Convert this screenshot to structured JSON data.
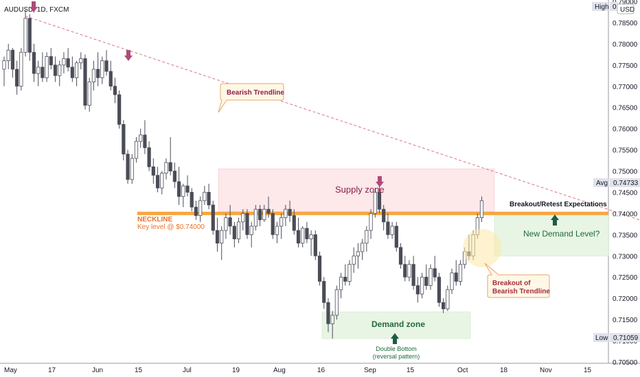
{
  "header": {
    "symbol_title": "AUDUSD, 1D, FXCM"
  },
  "price_scale": {
    "currency": "USD",
    "ticks": [
      "0.78500",
      "0.78000",
      "0.77500",
      "0.77000",
      "0.76500",
      "0.76000",
      "0.75500",
      "0.75000",
      "0.74500",
      "0.74000",
      "0.73500",
      "0.73000",
      "0.72500",
      "0.72000",
      "0.71500",
      "0.71000",
      "0.70500"
    ],
    "top_tick_partial": "0.79000",
    "high_label": "High",
    "high_value_partial": "0",
    "avg_label": "Avg",
    "avg_value": "0.74733",
    "low_label": "Low",
    "low_value": "0.71059"
  },
  "time_scale": {
    "labels": [
      "May",
      "17",
      "Jun",
      "15",
      "Jul",
      "19",
      "Aug",
      "16",
      "Sep",
      "15",
      "Oct",
      "18",
      "Nov",
      "15"
    ]
  },
  "annotations": {
    "bearish_trendline": "Bearish Trendline",
    "supply_zone": "Supply zone",
    "neckline": "NECKLINE",
    "key_level": "Key level @ $0.74000",
    "breakout_retest": "Breakout/Retest Expectations",
    "new_demand": "New Demand Level?",
    "breakout_line1": "Breakout of",
    "breakout_line2": "Bearish Trendline",
    "demand_zone": "Demand zone",
    "double_bottom_line1": "Double Bottom",
    "double_bottom_line2": "(reversal pattern)"
  },
  "colors": {
    "candle_up": "#ffffff",
    "candle_down": "#4a4d57",
    "candle_border": "#4a4d57",
    "neckline": "#f5a742",
    "neckline_text": "#e8732a",
    "trendline": "#d9747c",
    "supply_fill": "#fde8ea",
    "demand_fill": "#e8f5e4",
    "supply_text": "#8b1f4a",
    "demand_text": "#1e6b3a",
    "arrow_down": "#b04a78",
    "arrow_up": "#1e5c45",
    "callout_bg": "#fff8e6",
    "callout_border": "#e8a36a"
  },
  "chart_data": {
    "type": "candlestick",
    "symbol": "AUDUSD",
    "timeframe": "1D",
    "ylim": [
      0.705,
      0.79
    ],
    "horizontal_level": 0.74,
    "supply_zone": [
      0.7405,
      0.7505
    ],
    "demand_zone": [
      0.7105,
      0.7168
    ],
    "new_demand_zone": [
      0.73,
      0.7398
    ],
    "trendline": {
      "start": {
        "index": 5,
        "price": 0.7865
      },
      "end": {
        "index": 206,
        "price": 0.7195
      }
    },
    "candles": [
      [
        0.774,
        0.777,
        0.77,
        0.776
      ],
      [
        0.776,
        0.78,
        0.774,
        0.7785
      ],
      [
        0.7785,
        0.779,
        0.772,
        0.774
      ],
      [
        0.774,
        0.776,
        0.768,
        0.77
      ],
      [
        0.77,
        0.779,
        0.769,
        0.778
      ],
      [
        0.778,
        0.788,
        0.777,
        0.786
      ],
      [
        0.786,
        0.787,
        0.776,
        0.778
      ],
      [
        0.778,
        0.78,
        0.771,
        0.773
      ],
      [
        0.773,
        0.776,
        0.77,
        0.7745
      ],
      [
        0.7745,
        0.778,
        0.771,
        0.772
      ],
      [
        0.772,
        0.778,
        0.771,
        0.777
      ],
      [
        0.777,
        0.779,
        0.774,
        0.775
      ],
      [
        0.775,
        0.777,
        0.771,
        0.7725
      ],
      [
        0.7725,
        0.776,
        0.77,
        0.775
      ],
      [
        0.775,
        0.778,
        0.773,
        0.7765
      ],
      [
        0.7765,
        0.779,
        0.7735,
        0.7745
      ],
      [
        0.7745,
        0.777,
        0.771,
        0.772
      ],
      [
        0.772,
        0.776,
        0.77,
        0.7755
      ],
      [
        0.7755,
        0.778,
        0.774,
        0.7765
      ],
      [
        0.7765,
        0.7775,
        0.7645,
        0.7655
      ],
      [
        0.7655,
        0.772,
        0.764,
        0.771
      ],
      [
        0.771,
        0.776,
        0.769,
        0.774
      ],
      [
        0.774,
        0.778,
        0.77,
        0.772
      ],
      [
        0.772,
        0.777,
        0.7705,
        0.776
      ],
      [
        0.776,
        0.7785,
        0.7725,
        0.7735
      ],
      [
        0.7735,
        0.776,
        0.769,
        0.77
      ],
      [
        0.77,
        0.772,
        0.766,
        0.768
      ],
      [
        0.768,
        0.769,
        0.76,
        0.761
      ],
      [
        0.761,
        0.762,
        0.7525,
        0.754
      ],
      [
        0.754,
        0.755,
        0.747,
        0.748
      ],
      [
        0.748,
        0.754,
        0.747,
        0.753
      ],
      [
        0.753,
        0.758,
        0.752,
        0.757
      ],
      [
        0.757,
        0.76,
        0.7555,
        0.7585
      ],
      [
        0.7585,
        0.762,
        0.754,
        0.7555
      ],
      [
        0.7555,
        0.757,
        0.75,
        0.751
      ],
      [
        0.751,
        0.753,
        0.747,
        0.749
      ],
      [
        0.749,
        0.751,
        0.745,
        0.746
      ],
      [
        0.746,
        0.75,
        0.7445,
        0.7495
      ],
      [
        0.7495,
        0.753,
        0.748,
        0.752
      ],
      [
        0.752,
        0.758,
        0.749,
        0.75
      ],
      [
        0.75,
        0.752,
        0.746,
        0.7475
      ],
      [
        0.7475,
        0.751,
        0.742,
        0.744
      ],
      [
        0.744,
        0.747,
        0.7415,
        0.7465
      ],
      [
        0.7465,
        0.749,
        0.744,
        0.745
      ],
      [
        0.745,
        0.746,
        0.7405,
        0.7415
      ],
      [
        0.7415,
        0.743,
        0.7385,
        0.7395
      ],
      [
        0.7395,
        0.744,
        0.738,
        0.743
      ],
      [
        0.743,
        0.7465,
        0.742,
        0.745
      ],
      [
        0.745,
        0.747,
        0.741,
        0.742
      ],
      [
        0.742,
        0.743,
        0.735,
        0.736
      ],
      [
        0.736,
        0.739,
        0.731,
        0.733
      ],
      [
        0.733,
        0.737,
        0.729,
        0.736
      ],
      [
        0.736,
        0.74,
        0.734,
        0.739
      ],
      [
        0.739,
        0.742,
        0.735,
        0.737
      ],
      [
        0.737,
        0.738,
        0.732,
        0.734
      ],
      [
        0.734,
        0.739,
        0.733,
        0.738
      ],
      [
        0.738,
        0.741,
        0.736,
        0.74
      ],
      [
        0.74,
        0.741,
        0.734,
        0.735
      ],
      [
        0.735,
        0.738,
        0.732,
        0.737
      ],
      [
        0.737,
        0.742,
        0.736,
        0.741
      ],
      [
        0.741,
        0.742,
        0.737,
        0.7385
      ],
      [
        0.7385,
        0.742,
        0.738,
        0.741
      ],
      [
        0.741,
        0.744,
        0.739,
        0.74
      ],
      [
        0.74,
        0.741,
        0.734,
        0.735
      ],
      [
        0.735,
        0.738,
        0.733,
        0.737
      ],
      [
        0.737,
        0.74,
        0.734,
        0.739
      ],
      [
        0.739,
        0.742,
        0.737,
        0.741
      ],
      [
        0.741,
        0.743,
        0.738,
        0.7395
      ],
      [
        0.7395,
        0.741,
        0.735,
        0.736
      ],
      [
        0.736,
        0.739,
        0.732,
        0.733
      ],
      [
        0.733,
        0.737,
        0.732,
        0.7365
      ],
      [
        0.7365,
        0.738,
        0.733,
        0.734
      ],
      [
        0.734,
        0.736,
        0.73,
        0.735
      ],
      [
        0.735,
        0.736,
        0.729,
        0.73
      ],
      [
        0.73,
        0.731,
        0.723,
        0.724
      ],
      [
        0.724,
        0.725,
        0.7175,
        0.719
      ],
      [
        0.719,
        0.72,
        0.712,
        0.714
      ],
      [
        0.714,
        0.717,
        0.7105,
        0.716
      ],
      [
        0.716,
        0.723,
        0.715,
        0.722
      ],
      [
        0.722,
        0.726,
        0.72,
        0.725
      ],
      [
        0.725,
        0.728,
        0.723,
        0.724
      ],
      [
        0.724,
        0.729,
        0.723,
        0.728
      ],
      [
        0.728,
        0.732,
        0.726,
        0.73
      ],
      [
        0.73,
        0.733,
        0.727,
        0.731
      ],
      [
        0.731,
        0.734,
        0.729,
        0.733
      ],
      [
        0.733,
        0.737,
        0.731,
        0.736
      ],
      [
        0.736,
        0.741,
        0.734,
        0.74
      ],
      [
        0.74,
        0.746,
        0.739,
        0.745
      ],
      [
        0.745,
        0.747,
        0.74,
        0.741
      ],
      [
        0.741,
        0.742,
        0.736,
        0.738
      ],
      [
        0.738,
        0.74,
        0.734,
        0.735
      ],
      [
        0.735,
        0.738,
        0.734,
        0.737
      ],
      [
        0.737,
        0.738,
        0.731,
        0.732
      ],
      [
        0.732,
        0.733,
        0.727,
        0.728
      ],
      [
        0.728,
        0.73,
        0.724,
        0.725
      ],
      [
        0.725,
        0.729,
        0.724,
        0.728
      ],
      [
        0.728,
        0.73,
        0.722,
        0.723
      ],
      [
        0.723,
        0.725,
        0.719,
        0.721
      ],
      [
        0.721,
        0.726,
        0.72,
        0.725
      ],
      [
        0.725,
        0.728,
        0.722,
        0.723
      ],
      [
        0.723,
        0.728,
        0.722,
        0.727
      ],
      [
        0.727,
        0.73,
        0.724,
        0.725
      ],
      [
        0.725,
        0.726,
        0.718,
        0.719
      ],
      [
        0.719,
        0.72,
        0.7165,
        0.7175
      ],
      [
        0.7175,
        0.723,
        0.717,
        0.722
      ],
      [
        0.722,
        0.727,
        0.721,
        0.726
      ],
      [
        0.726,
        0.729,
        0.723,
        0.724
      ],
      [
        0.724,
        0.729,
        0.723,
        0.728
      ],
      [
        0.728,
        0.732,
        0.727,
        0.731
      ],
      [
        0.731,
        0.735,
        0.729,
        0.73
      ],
      [
        0.73,
        0.736,
        0.729,
        0.735
      ],
      [
        0.735,
        0.74,
        0.734,
        0.739
      ],
      [
        0.739,
        0.744,
        0.738,
        0.743
      ]
    ]
  }
}
